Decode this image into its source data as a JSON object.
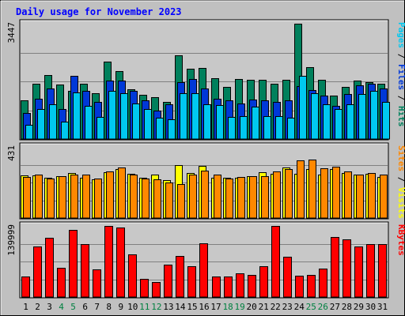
{
  "chart_data": {
    "type": "bar",
    "title": "Daily usage for November 2023",
    "days": [
      "1",
      "2",
      "3",
      "4",
      "5",
      "6",
      "7",
      "8",
      "9",
      "10",
      "11",
      "12",
      "13",
      "14",
      "15",
      "16",
      "17",
      "18",
      "19",
      "20",
      "21",
      "22",
      "23",
      "24",
      "25",
      "26",
      "27",
      "28",
      "29",
      "30",
      "31"
    ],
    "weekend_days": [
      "4",
      "5",
      "11",
      "12",
      "18",
      "19",
      "25",
      "26"
    ],
    "colors": {
      "hits": "#00805c",
      "files": "#0038d8",
      "pages": "#00c8f0",
      "visits": "#ffff00",
      "sites": "#ff8800",
      "kbytes": "#ff0000",
      "weekday_label": "#000000",
      "weekend_label": "#008040",
      "background": "#c0c0c0",
      "plot": "#c8c8c8",
      "title": "#0000ff"
    },
    "panels": [
      {
        "id": "hits-files-pages",
        "max_label": "3447",
        "max": 3447,
        "legend": [
          {
            "text": "Pages",
            "color": "#00c8f0"
          },
          {
            "text": " / ",
            "color": "#000000"
          },
          {
            "text": "Files",
            "color": "#0038d8"
          },
          {
            "text": " / ",
            "color": "#000000"
          },
          {
            "text": "Hits",
            "color": "#00805c"
          }
        ],
        "series": [
          {
            "name": "Hits",
            "color": "#00805c",
            "values": [
              1150,
              1660,
              1910,
              1640,
              1430,
              1660,
              1380,
              2320,
              2040,
              1480,
              1320,
              1240,
              1110,
              2500,
              2110,
              2120,
              1810,
              1560,
              1790,
              1780,
              1780,
              1660,
              1770,
              3447,
              2150,
              1780,
              1290,
              1560,
              1750,
              1700,
              1660
            ]
          },
          {
            "name": "Files",
            "color": "#0038d8",
            "values": [
              770,
              1210,
              1510,
              900,
              1880,
              1440,
              1100,
              1740,
              1740,
              1430,
              1160,
              860,
              1030,
              1700,
              1790,
              1500,
              1210,
              1150,
              1060,
              1170,
              1150,
              1100,
              1160,
              1590,
              1470,
              1300,
              1000,
              1350,
              1600,
              1660,
              1500
            ]
          },
          {
            "name": "Pages",
            "color": "#00c8f0",
            "values": [
              430,
              900,
              1040,
              530,
              1390,
              980,
              670,
              1430,
              1360,
              1070,
              900,
              640,
              590,
              1370,
              1360,
              1030,
              1010,
              670,
              680,
              960,
              690,
              690,
              640,
              1890,
              1370,
              1040,
              900,
              1030,
              1340,
              1430,
              1100
            ]
          }
        ]
      },
      {
        "id": "visits-sites",
        "max_label": "431",
        "max": 431,
        "legend": [
          {
            "text": "Sites",
            "color": "#ff8800"
          },
          {
            "text": " / ",
            "color": "#000000"
          },
          {
            "text": "Visits",
            "color": "#ffff00"
          }
        ],
        "series": [
          {
            "name": "Visits",
            "color": "#ffff00",
            "values": [
              258,
              260,
              244,
              252,
              273,
              246,
              236,
              280,
              296,
              269,
              243,
              265,
              229,
              323,
              275,
              315,
              245,
              245,
              246,
              255,
              279,
              268,
              305,
              267,
              295,
              265,
              298,
              274,
              264,
              270,
              247
            ]
          },
          {
            "name": "Sites",
            "color": "#ff8800",
            "values": [
              248,
              264,
              240,
              252,
              262,
              264,
              239,
              283,
              307,
              262,
              241,
              233,
              216,
              204,
              262,
              285,
              264,
              240,
              248,
              253,
              254,
              283,
              297,
              350,
              352,
              300,
              310,
              281,
              265,
              275,
              265
            ]
          }
        ]
      },
      {
        "id": "kbytes",
        "max_label": "139999",
        "max": 139999,
        "legend": [
          {
            "text": "KBytes",
            "color": "#ff0000"
          }
        ],
        "series": [
          {
            "name": "KBytes",
            "color": "#ff0000",
            "values": [
              40000,
              100000,
              116000,
              58000,
              132000,
              104000,
              55000,
              139999,
              137000,
              84000,
              35000,
              30000,
              64000,
              81000,
              61000,
              106000,
              41000,
              41000,
              47000,
              44000,
              60000,
              139999,
              80000,
              42000,
              43000,
              56000,
              118000,
              114000,
              100000,
              104000,
              104000
            ]
          }
        ]
      }
    ]
  }
}
